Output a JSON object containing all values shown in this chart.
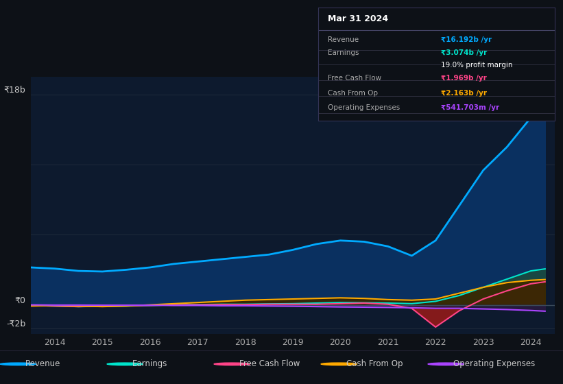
{
  "bg_color": "#0d1117",
  "plot_bg_color": "#0d1a2e",
  "grid_color": "#1e2a3a",
  "years": [
    2013.5,
    2014.0,
    2014.5,
    2015.0,
    2015.5,
    2016.0,
    2016.5,
    2017.0,
    2017.5,
    2018.0,
    2018.5,
    2019.0,
    2019.5,
    2020.0,
    2020.5,
    2021.0,
    2021.5,
    2022.0,
    2022.5,
    2023.0,
    2023.5,
    2024.0,
    2024.3
  ],
  "revenue": [
    3.2,
    3.1,
    2.9,
    2.85,
    3.0,
    3.2,
    3.5,
    3.7,
    3.9,
    4.1,
    4.3,
    4.7,
    5.2,
    5.5,
    5.4,
    5.0,
    4.2,
    5.5,
    8.5,
    11.5,
    13.5,
    16.0,
    16.192
  ],
  "earnings": [
    -0.05,
    -0.1,
    -0.15,
    -0.12,
    -0.1,
    -0.05,
    0.0,
    0.02,
    0.05,
    0.05,
    0.08,
    0.1,
    0.15,
    0.2,
    0.18,
    0.15,
    0.1,
    0.3,
    0.8,
    1.5,
    2.2,
    2.9,
    3.074
  ],
  "free_cash_flow": [
    -0.05,
    -0.1,
    -0.15,
    -0.1,
    -0.08,
    -0.05,
    0.0,
    0.0,
    0.02,
    0.02,
    0.05,
    0.05,
    0.05,
    0.1,
    0.15,
    0.05,
    -0.3,
    -1.9,
    -0.5,
    0.5,
    1.2,
    1.8,
    1.969
  ],
  "cash_from_op": [
    -0.1,
    -0.05,
    -0.1,
    -0.15,
    -0.1,
    0.0,
    0.1,
    0.2,
    0.3,
    0.4,
    0.45,
    0.5,
    0.55,
    0.6,
    0.55,
    0.45,
    0.4,
    0.5,
    1.0,
    1.5,
    1.9,
    2.1,
    2.163
  ],
  "op_expenses": [
    0.0,
    -0.02,
    -0.02,
    -0.03,
    -0.03,
    -0.03,
    -0.05,
    -0.05,
    -0.08,
    -0.08,
    -0.1,
    -0.12,
    -0.15,
    -0.18,
    -0.2,
    -0.22,
    -0.25,
    -0.3,
    -0.3,
    -0.35,
    -0.4,
    -0.48,
    -0.5417
  ],
  "revenue_color": "#00aaff",
  "revenue_fill_color": "#0a3060",
  "earnings_color": "#00e5cc",
  "earnings_fill_color": "#1a4040",
  "free_cash_flow_color": "#ff4488",
  "cash_from_op_color": "#ffaa00",
  "op_expenses_color": "#aa44ff",
  "ylim": [
    -2.5,
    19.5
  ],
  "xlim": [
    2013.5,
    2024.5
  ],
  "xticks": [
    2014,
    2015,
    2016,
    2017,
    2018,
    2019,
    2020,
    2021,
    2022,
    2023,
    2024
  ],
  "table_title": "Mar 31 2024",
  "table_rows": [
    {
      "label": "Revenue",
      "value": "₹16.192b /yr",
      "value_color": "#00aaff"
    },
    {
      "label": "Earnings",
      "value": "₹3.074b /yr",
      "value_color": "#00e5cc"
    },
    {
      "label": "",
      "value": "19.0% profit margin",
      "value_color": "#ffffff"
    },
    {
      "label": "Free Cash Flow",
      "value": "₹1.969b /yr",
      "value_color": "#ff4488"
    },
    {
      "label": "Cash From Op",
      "value": "₹2.163b /yr",
      "value_color": "#ffaa00"
    },
    {
      "label": "Operating Expenses",
      "value": "₹541.703m /yr",
      "value_color": "#aa44ff"
    }
  ],
  "legend_items": [
    {
      "label": "Revenue",
      "color": "#00aaff"
    },
    {
      "label": "Earnings",
      "color": "#00e5cc"
    },
    {
      "label": "Free Cash Flow",
      "color": "#ff4488"
    },
    {
      "label": "Cash From Op",
      "color": "#ffaa00"
    },
    {
      "label": "Operating Expenses",
      "color": "#aa44ff"
    }
  ]
}
